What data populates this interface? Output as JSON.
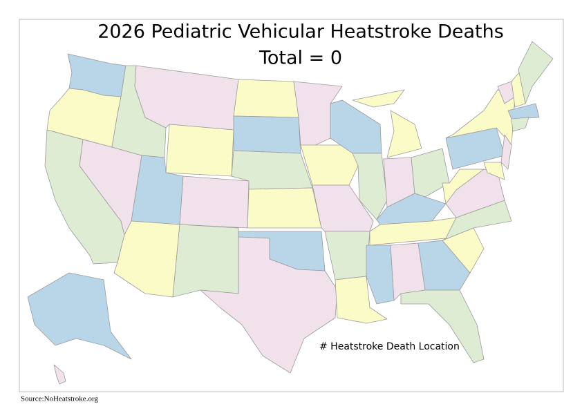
{
  "header": {
    "title": "2026 Pediatric Vehicular Heatstroke Deaths",
    "subtitle": "Total = 0"
  },
  "legend": {
    "label": "#  Heatstroke Death Location"
  },
  "footer": {
    "source": "Source:NoHeatstroke.org"
  }
}
